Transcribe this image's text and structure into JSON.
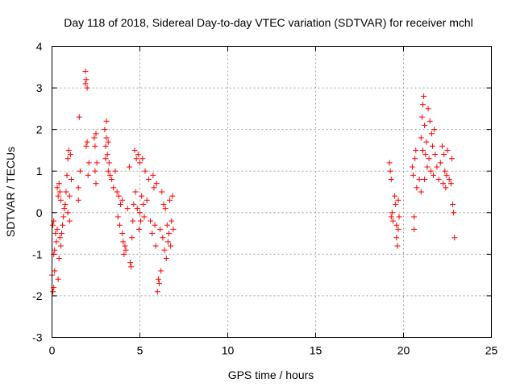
{
  "chart_data": {
    "type": "scatter",
    "title": "Day 118 of 2018, Sidereal Day-to-day VTEC variation (SDTVAR) for receiver mchl",
    "xlabel": "GPS time / hours",
    "ylabel": "SDTVAR / TECUs",
    "xlim": [
      0,
      25
    ],
    "ylim": [
      -3,
      4
    ],
    "xticks": [
      0,
      5,
      10,
      15,
      20,
      25
    ],
    "xtick_labels": [
      "0",
      "5",
      "10",
      "15",
      "20",
      "25"
    ],
    "yticks": [
      -3,
      -2,
      -1,
      0,
      1,
      2,
      3,
      4
    ],
    "ytick_labels": [
      "-3",
      "-2",
      "-1",
      "0",
      "1",
      "2",
      "3",
      "4"
    ],
    "grid": true,
    "legend": "none",
    "marker": "plus",
    "color": "#ff0000",
    "series": [
      {
        "name": "SDTVAR",
        "points": [
          [
            0.0,
            -1.5
          ],
          [
            0.05,
            -1.9
          ],
          [
            0.05,
            -0.3
          ],
          [
            0.1,
            -1.8
          ],
          [
            0.1,
            -1.0
          ],
          [
            0.1,
            -0.2
          ],
          [
            0.15,
            -1.4
          ],
          [
            0.15,
            -0.9
          ],
          [
            0.2,
            -0.5
          ],
          [
            0.25,
            -0.7
          ],
          [
            0.3,
            -0.4
          ],
          [
            0.3,
            0.6
          ],
          [
            0.35,
            -1.6
          ],
          [
            0.35,
            0.4
          ],
          [
            0.4,
            -1.1
          ],
          [
            0.4,
            0.7
          ],
          [
            0.45,
            -0.6
          ],
          [
            0.45,
            0.5
          ],
          [
            0.5,
            -0.8
          ],
          [
            0.5,
            0.3
          ],
          [
            0.55,
            -0.5
          ],
          [
            0.6,
            -0.3
          ],
          [
            0.65,
            -0.1
          ],
          [
            0.7,
            0.1
          ],
          [
            0.75,
            0.2
          ],
          [
            0.8,
            0.5
          ],
          [
            0.85,
            0.9
          ],
          [
            0.9,
            1.3
          ],
          [
            0.9,
            0.0
          ],
          [
            0.95,
            1.5
          ],
          [
            1.0,
            0.4
          ],
          [
            1.0,
            -0.2
          ],
          [
            1.05,
            1.4
          ],
          [
            1.1,
            0.8
          ],
          [
            1.5,
            0.6
          ],
          [
            1.5,
            0.3
          ],
          [
            1.55,
            2.3
          ],
          [
            1.6,
            1.0
          ],
          [
            1.9,
            3.4
          ],
          [
            1.9,
            3.1
          ],
          [
            1.95,
            3.2
          ],
          [
            1.95,
            1.6
          ],
          [
            2.0,
            3.0
          ],
          [
            2.0,
            1.7
          ],
          [
            2.05,
            0.9
          ],
          [
            2.1,
            1.2
          ],
          [
            2.4,
            1.8
          ],
          [
            2.45,
            1.6
          ],
          [
            2.45,
            1.0
          ],
          [
            2.5,
            0.7
          ],
          [
            2.5,
            1.9
          ],
          [
            2.55,
            1.2
          ],
          [
            3.0,
            2.0
          ],
          [
            3.05,
            1.6
          ],
          [
            3.05,
            1.3
          ],
          [
            3.1,
            1.8
          ],
          [
            3.1,
            2.2
          ],
          [
            3.15,
            1.4
          ],
          [
            3.2,
            1.7
          ],
          [
            3.2,
            1.0
          ],
          [
            3.25,
            1.2
          ],
          [
            3.3,
            0.9
          ],
          [
            3.4,
            0.8
          ],
          [
            3.5,
            0.6
          ],
          [
            3.6,
            1.0
          ],
          [
            3.7,
            0.5
          ],
          [
            3.75,
            -0.1
          ],
          [
            3.8,
            0.4
          ],
          [
            3.85,
            -0.3
          ],
          [
            3.9,
            0.2
          ],
          [
            4.0,
            -0.5
          ],
          [
            4.0,
            0.3
          ],
          [
            4.05,
            -0.7
          ],
          [
            4.1,
            -1.0
          ],
          [
            4.15,
            -0.8
          ],
          [
            4.2,
            -0.9
          ],
          [
            4.3,
            0.1
          ],
          [
            4.4,
            1.1
          ],
          [
            4.45,
            -1.2
          ],
          [
            4.5,
            -1.3
          ],
          [
            4.55,
            -0.6
          ],
          [
            4.6,
            -0.2
          ],
          [
            4.65,
            0.2
          ],
          [
            4.7,
            1.5
          ],
          [
            4.75,
            0.5
          ],
          [
            4.8,
            1.3
          ],
          [
            4.85,
            0.1
          ],
          [
            4.9,
            1.4
          ],
          [
            4.95,
            -0.4
          ],
          [
            5.0,
            1.2
          ],
          [
            5.0,
            0.0
          ],
          [
            5.05,
            -0.2
          ],
          [
            5.1,
            0.4
          ],
          [
            5.15,
            1.3
          ],
          [
            5.2,
            0.2
          ],
          [
            5.25,
            -0.1
          ],
          [
            5.3,
            1.0
          ],
          [
            5.4,
            0.3
          ],
          [
            5.5,
            0.8
          ],
          [
            5.6,
            -0.2
          ],
          [
            5.7,
            -0.5
          ],
          [
            5.75,
            0.9
          ],
          [
            5.8,
            0.6
          ],
          [
            5.85,
            -0.3
          ],
          [
            5.9,
            -0.8
          ],
          [
            5.95,
            0.7
          ],
          [
            6.0,
            -1.9
          ],
          [
            6.05,
            -1.6
          ],
          [
            6.1,
            -1.7
          ],
          [
            6.15,
            -0.4
          ],
          [
            6.2,
            -1.4
          ],
          [
            6.25,
            0.5
          ],
          [
            6.3,
            -0.6
          ],
          [
            6.35,
            0.2
          ],
          [
            6.4,
            -0.9
          ],
          [
            6.45,
            0.1
          ],
          [
            6.5,
            -1.1
          ],
          [
            6.55,
            -0.3
          ],
          [
            6.6,
            -0.7
          ],
          [
            6.65,
            -0.5
          ],
          [
            6.7,
            0.3
          ],
          [
            6.75,
            -0.8
          ],
          [
            6.8,
            -0.2
          ],
          [
            6.85,
            0.4
          ],
          [
            6.9,
            -0.4
          ],
          [
            19.2,
            1.2
          ],
          [
            19.25,
            1.0
          ],
          [
            19.3,
            0.8
          ],
          [
            19.3,
            -0.1
          ],
          [
            19.35,
            0.0
          ],
          [
            19.4,
            -0.2
          ],
          [
            19.5,
            0.4
          ],
          [
            19.55,
            0.2
          ],
          [
            19.6,
            -0.3
          ],
          [
            19.6,
            -0.6
          ],
          [
            19.65,
            -0.8
          ],
          [
            19.7,
            -0.4
          ],
          [
            19.7,
            0.3
          ],
          [
            19.75,
            -0.1
          ],
          [
            20.5,
            1.1
          ],
          [
            20.55,
            0.9
          ],
          [
            20.6,
            -0.4
          ],
          [
            20.6,
            -0.1
          ],
          [
            20.65,
            1.3
          ],
          [
            20.7,
            1.5
          ],
          [
            20.75,
            0.6
          ],
          [
            20.9,
            0.8
          ],
          [
            21.0,
            1.8
          ],
          [
            21.0,
            0.5
          ],
          [
            21.05,
            2.3
          ],
          [
            21.1,
            2.6
          ],
          [
            21.1,
            1.5
          ],
          [
            21.15,
            2.8
          ],
          [
            21.2,
            2.1
          ],
          [
            21.2,
            0.8
          ],
          [
            21.25,
            1.4
          ],
          [
            21.3,
            1.7
          ],
          [
            21.35,
            1.1
          ],
          [
            21.4,
            2.5
          ],
          [
            21.45,
            1.3
          ],
          [
            21.5,
            2.2
          ],
          [
            21.55,
            1.0
          ],
          [
            21.6,
            1.9
          ],
          [
            21.65,
            1.6
          ],
          [
            21.7,
            0.9
          ],
          [
            21.75,
            2.0
          ],
          [
            21.8,
            1.4
          ],
          [
            21.9,
            1.1
          ],
          [
            22.0,
            0.8
          ],
          [
            22.1,
            1.2
          ],
          [
            22.2,
            1.6
          ],
          [
            22.25,
            0.7
          ],
          [
            22.3,
            1.4
          ],
          [
            22.35,
            1.0
          ],
          [
            22.4,
            0.6
          ],
          [
            22.45,
            0.9
          ],
          [
            22.5,
            1.5
          ],
          [
            22.6,
            0.8
          ],
          [
            22.7,
            0.7
          ],
          [
            22.75,
            1.3
          ],
          [
            22.8,
            0.2
          ],
          [
            22.85,
            0.0
          ],
          [
            22.9,
            -0.6
          ]
        ]
      }
    ]
  }
}
